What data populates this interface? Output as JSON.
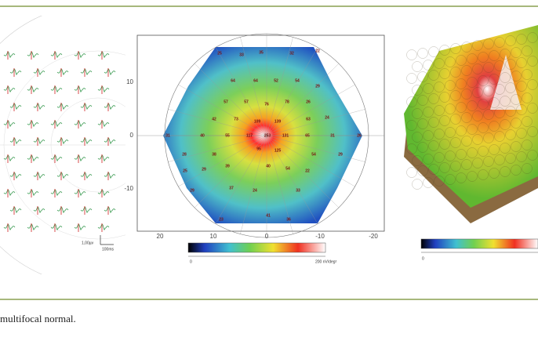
{
  "panels": [
    {
      "scale_labels": [
        "1,00µv",
        "100ms"
      ]
    },
    {
      "y_ticks": [
        "10",
        "0",
        "-10"
      ],
      "x_ticks": [
        "20",
        "10",
        "0",
        "-10",
        "-20"
      ],
      "values": [
        "253",
        "117",
        "109",
        "139",
        "131",
        "125",
        "95",
        "25",
        "33",
        "35",
        "32",
        "22",
        "64",
        "64",
        "52",
        "54",
        "29",
        "57",
        "57",
        "76",
        "78",
        "26",
        "42",
        "73",
        "63",
        "24",
        "31",
        "40",
        "55",
        "65",
        "31",
        "26",
        "28",
        "38",
        "54",
        "29",
        "25",
        "29",
        "39",
        "40",
        "54",
        "22",
        "29",
        "37",
        "24",
        "33",
        "23",
        "41",
        "36"
      ],
      "colorbar": {
        "min": "0",
        "max": "200 nV/deg²"
      }
    },
    {
      "colorbar": {
        "min": "0"
      }
    }
  ],
  "caption": "multifocal normal."
}
